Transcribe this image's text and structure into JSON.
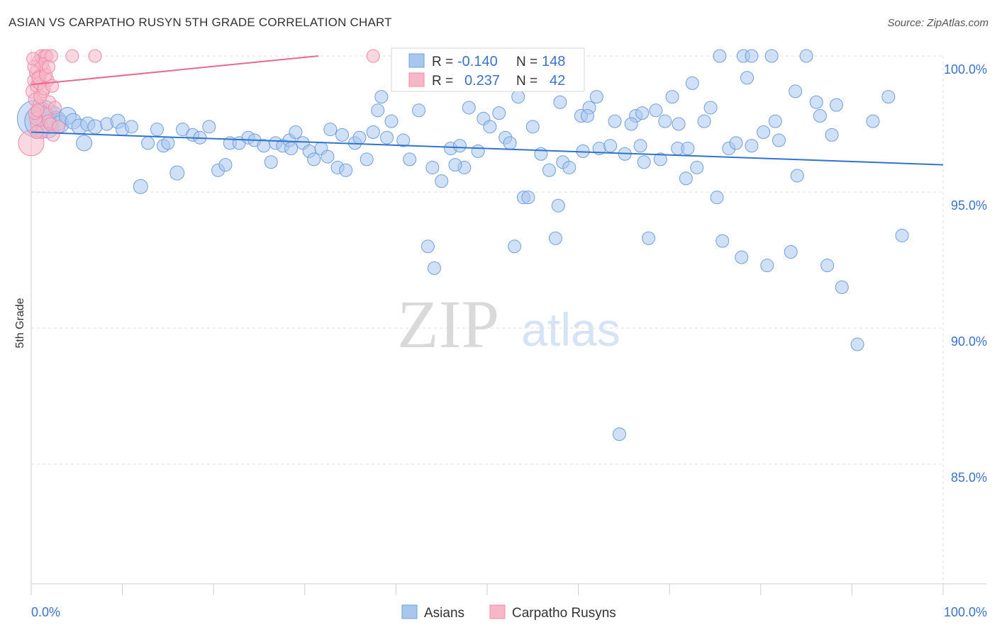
{
  "header": {
    "title": "ASIAN VS CARPATHO RUSYN 5TH GRADE CORRELATION CHART",
    "source": "Source: ZipAtlas.com"
  },
  "watermark": {
    "zip": "ZIP",
    "atlas": "atlas"
  },
  "colors": {
    "asians_fill": "#a9c7ee",
    "asians_stroke": "#6f9fdc",
    "asians_line": "#2f74d0",
    "rusyn_fill": "#f6b8c9",
    "rusyn_stroke": "#ef8aa8",
    "rusyn_line": "#e8688f",
    "accent_text": "#3b73c8",
    "grid": "#dddddd"
  },
  "legend_stats": {
    "rows": [
      {
        "r_label": "R =",
        "r_value": "-0.140",
        "n_label": "N =",
        "n_value": "148"
      },
      {
        "r_label": "R =",
        "r_value": "0.237",
        "n_label": "N =",
        "n_value": "42"
      }
    ]
  },
  "bottom_legend": [
    "Asians",
    "Carpatho Rusyns"
  ],
  "chart_data": {
    "type": "scatter",
    "ylabel": "5th Grade",
    "xlim": [
      0,
      100
    ],
    "ylim": [
      80.5,
      100.5
    ],
    "x_tick_labels": [
      "0.0%",
      "100.0%"
    ],
    "y_tick_labels": [
      "100.0%",
      "95.0%",
      "90.0%",
      "85.0%"
    ],
    "y_ticks": [
      100,
      95,
      90,
      85
    ],
    "grid": true,
    "legend_position": "top-center",
    "series": [
      {
        "name": "Asians",
        "r": -0.14,
        "n": 148,
        "trend": {
          "x": [
            0,
            100
          ],
          "y": [
            97.2,
            96.0
          ]
        },
        "points": [
          [
            0.5,
            97.7,
            26
          ],
          [
            1.0,
            97.6,
            22
          ],
          [
            1.4,
            97.9,
            18
          ],
          [
            1.8,
            97.4,
            16
          ],
          [
            2.3,
            97.8,
            14
          ],
          [
            2.8,
            97.6,
            14
          ],
          [
            3.2,
            97.5,
            12
          ],
          [
            4.0,
            97.8,
            12
          ],
          [
            4.6,
            97.6,
            11
          ],
          [
            5.3,
            97.4,
            11
          ],
          [
            5.8,
            96.8,
            11
          ],
          [
            6.2,
            97.5,
            10
          ],
          [
            7.0,
            97.4,
            10
          ],
          [
            8.3,
            97.5,
            9
          ],
          [
            9.5,
            97.6,
            10
          ],
          [
            10.0,
            97.3,
            9
          ],
          [
            11.0,
            97.4,
            9
          ],
          [
            12.0,
            95.2,
            10
          ],
          [
            12.8,
            96.8,
            9
          ],
          [
            13.8,
            97.3,
            9
          ],
          [
            14.5,
            96.7,
            9
          ],
          [
            15.0,
            96.8,
            9
          ],
          [
            16.0,
            95.7,
            10
          ],
          [
            16.6,
            97.3,
            9
          ],
          [
            17.7,
            97.1,
            9
          ],
          [
            18.5,
            97.0,
            9
          ],
          [
            19.5,
            97.4,
            9
          ],
          [
            20.5,
            95.8,
            9
          ],
          [
            21.3,
            96.0,
            9
          ],
          [
            21.8,
            96.8,
            9
          ],
          [
            22.8,
            96.8,
            9
          ],
          [
            23.8,
            97.0,
            9
          ],
          [
            24.5,
            96.9,
            9
          ],
          [
            25.5,
            96.7,
            9
          ],
          [
            26.3,
            96.1,
            9
          ],
          [
            26.8,
            96.8,
            9
          ],
          [
            27.6,
            96.7,
            9
          ],
          [
            28.3,
            96.9,
            9
          ],
          [
            29.0,
            97.2,
            9
          ],
          [
            29.8,
            96.8,
            9
          ],
          [
            30.5,
            96.5,
            9
          ],
          [
            31.8,
            96.6,
            9
          ],
          [
            32.5,
            96.3,
            9
          ],
          [
            32.8,
            97.3,
            9
          ],
          [
            33.6,
            95.9,
            9
          ],
          [
            34.1,
            97.1,
            9
          ],
          [
            35.5,
            96.8,
            9
          ],
          [
            36.0,
            97.0,
            9
          ],
          [
            36.8,
            96.2,
            9
          ],
          [
            38.0,
            98.0,
            9
          ],
          [
            38.4,
            98.5,
            9
          ],
          [
            39.5,
            97.6,
            9
          ],
          [
            39.0,
            97.0,
            9
          ],
          [
            40.8,
            96.9,
            9
          ],
          [
            41.5,
            96.2,
            9
          ],
          [
            42.5,
            98.0,
            9
          ],
          [
            43.5,
            93.0,
            9
          ],
          [
            44.2,
            92.2,
            9
          ],
          [
            45.0,
            95.4,
            9
          ],
          [
            46.0,
            96.6,
            9
          ],
          [
            47.0,
            96.7,
            9
          ],
          [
            47.5,
            95.9,
            9
          ],
          [
            48.0,
            98.1,
            9
          ],
          [
            49.0,
            96.5,
            9
          ],
          [
            49.6,
            97.7,
            9
          ],
          [
            50.3,
            97.4,
            9
          ],
          [
            51.3,
            97.9,
            9
          ],
          [
            52.0,
            97.0,
            9
          ],
          [
            53.0,
            93.0,
            9
          ],
          [
            53.4,
            98.5,
            9
          ],
          [
            54.0,
            94.8,
            9
          ],
          [
            54.5,
            94.8,
            9
          ],
          [
            55.0,
            97.4,
            9
          ],
          [
            55.9,
            96.4,
            9
          ],
          [
            56.8,
            95.8,
            9
          ],
          [
            57.8,
            94.5,
            9
          ],
          [
            58.3,
            96.1,
            9
          ],
          [
            59.0,
            95.9,
            9
          ],
          [
            60.3,
            97.8,
            9
          ],
          [
            61.2,
            98.1,
            9
          ],
          [
            62.0,
            98.5,
            9
          ],
          [
            62.3,
            96.6,
            9
          ],
          [
            64.0,
            97.6,
            9
          ],
          [
            65.1,
            96.4,
            9
          ],
          [
            66.3,
            97.8,
            9
          ],
          [
            66.8,
            96.7,
            9
          ],
          [
            67.2,
            96.1,
            9
          ],
          [
            67.7,
            93.3,
            9
          ],
          [
            68.5,
            98.0,
            9
          ],
          [
            69.5,
            97.6,
            9
          ],
          [
            70.3,
            98.5,
            9
          ],
          [
            70.9,
            96.6,
            9
          ],
          [
            71.8,
            95.5,
            9
          ],
          [
            72.5,
            99.0,
            9
          ],
          [
            73.0,
            95.9,
            9
          ],
          [
            73.8,
            97.6,
            9
          ],
          [
            74.5,
            98.1,
            9
          ],
          [
            75.2,
            94.8,
            9
          ],
          [
            75.8,
            93.2,
            9
          ],
          [
            76.5,
            96.6,
            9
          ],
          [
            77.3,
            96.8,
            9
          ],
          [
            77.9,
            92.6,
            9
          ],
          [
            78.5,
            99.2,
            9
          ],
          [
            79.0,
            96.7,
            9
          ],
          [
            80.3,
            97.2,
            9
          ],
          [
            80.7,
            92.3,
            9
          ],
          [
            81.6,
            97.6,
            9
          ],
          [
            82.0,
            96.9,
            9
          ],
          [
            83.3,
            92.8,
            9
          ],
          [
            83.8,
            98.7,
            9
          ],
          [
            84.0,
            95.6,
            9
          ],
          [
            86.1,
            98.3,
            9
          ],
          [
            86.5,
            97.8,
            9
          ],
          [
            87.3,
            92.3,
            9
          ],
          [
            87.8,
            97.1,
            9
          ],
          [
            88.3,
            98.2,
            9
          ],
          [
            88.9,
            91.5,
            9
          ],
          [
            90.6,
            89.4,
            9
          ],
          [
            92.3,
            97.6,
            9
          ],
          [
            94.0,
            98.5,
            9
          ],
          [
            75.5,
            100.0,
            9
          ],
          [
            78.1,
            100.0,
            9
          ],
          [
            79.0,
            100.0,
            9
          ],
          [
            81.2,
            100.0,
            9
          ],
          [
            85.0,
            100.0,
            9
          ],
          [
            95.5,
            93.4,
            9
          ],
          [
            63.5,
            96.7,
            9
          ],
          [
            61.0,
            97.8,
            9
          ],
          [
            58.0,
            98.3,
            9
          ],
          [
            54.0,
            99.0,
            9
          ],
          [
            50.5,
            99.0,
            9
          ],
          [
            57.5,
            93.3,
            9
          ],
          [
            64.5,
            86.1,
            9
          ],
          [
            60.5,
            96.5,
            9
          ],
          [
            65.8,
            97.5,
            9
          ],
          [
            67.0,
            97.9,
            9
          ],
          [
            69.0,
            96.2,
            9
          ],
          [
            71.0,
            97.5,
            9
          ],
          [
            72.0,
            96.6,
            9
          ],
          [
            52.5,
            96.8,
            9
          ],
          [
            46.5,
            96.0,
            9
          ],
          [
            44.0,
            95.9,
            9
          ],
          [
            37.5,
            97.2,
            9
          ],
          [
            34.5,
            95.8,
            9
          ],
          [
            31.0,
            96.2,
            9
          ],
          [
            28.5,
            96.6,
            9
          ]
        ]
      },
      {
        "name": "Carpatho Rusyns",
        "r": 0.237,
        "n": 42,
        "trend": {
          "x": [
            0,
            31.5
          ],
          "y": [
            98.95,
            100.0
          ]
        },
        "points": [
          [
            0.0,
            96.8,
            18
          ],
          [
            0.2,
            98.7,
            10
          ],
          [
            0.3,
            99.1,
            9
          ],
          [
            0.4,
            98.4,
            9
          ],
          [
            0.5,
            99.4,
            9
          ],
          [
            0.6,
            98.9,
            9
          ],
          [
            0.7,
            97.5,
            10
          ],
          [
            0.8,
            99.8,
            9
          ],
          [
            0.9,
            98.2,
            9
          ],
          [
            1.0,
            99.3,
            9
          ],
          [
            1.1,
            100.0,
            9
          ],
          [
            1.2,
            97.2,
            9
          ],
          [
            1.3,
            98.7,
            9
          ],
          [
            1.4,
            99.5,
            9
          ],
          [
            1.5,
            100.0,
            9
          ],
          [
            1.6,
            97.9,
            9
          ],
          [
            1.7,
            100.0,
            9
          ],
          [
            1.8,
            99.1,
            9
          ],
          [
            1.9,
            97.6,
            9
          ],
          [
            2.0,
            98.3,
            9
          ],
          [
            2.2,
            100.0,
            9
          ],
          [
            2.4,
            97.1,
            9
          ],
          [
            0.5,
            97.7,
            9
          ],
          [
            0.6,
            97.2,
            9
          ],
          [
            0.9,
            99.0,
            9
          ],
          [
            1.2,
            99.7,
            9
          ],
          [
            0.3,
            99.6,
            9
          ],
          [
            0.8,
            99.2,
            9
          ],
          [
            1.0,
            98.5,
            9
          ],
          [
            1.6,
            99.3,
            9
          ],
          [
            2.1,
            97.5,
            9
          ],
          [
            0.4,
            97.9,
            9
          ],
          [
            2.6,
            98.1,
            9
          ],
          [
            4.5,
            100.0,
            9
          ],
          [
            7.0,
            100.0,
            9
          ],
          [
            37.5,
            100.0,
            9
          ],
          [
            0.2,
            99.9,
            9
          ],
          [
            1.4,
            98.8,
            9
          ],
          [
            0.7,
            98.0,
            9
          ],
          [
            1.9,
            99.6,
            9
          ],
          [
            2.3,
            98.9,
            9
          ],
          [
            3.0,
            97.4,
            9
          ]
        ]
      }
    ]
  }
}
